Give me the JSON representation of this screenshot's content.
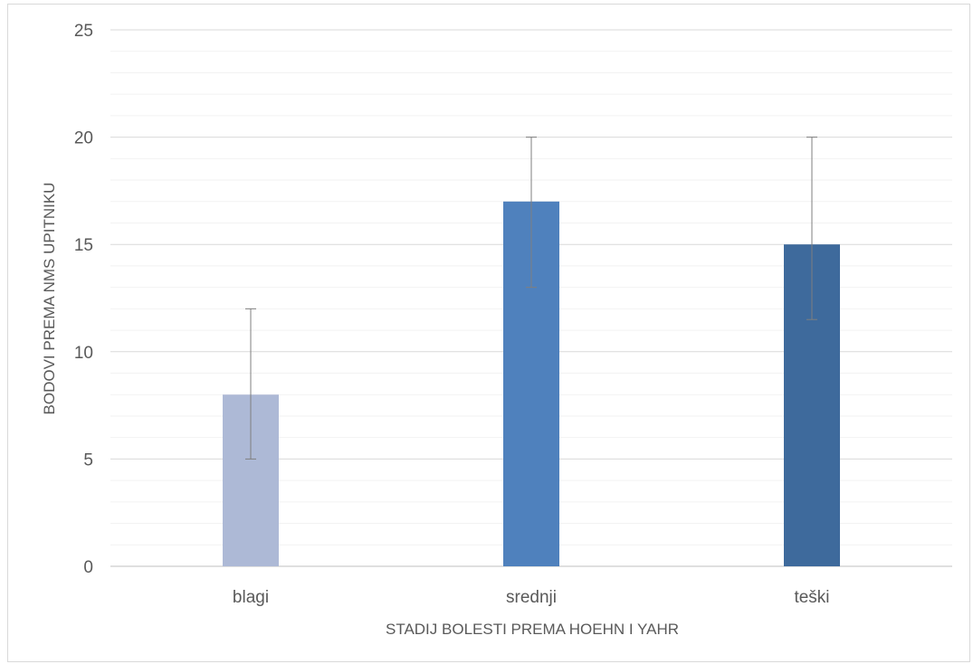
{
  "chart_data": {
    "type": "bar",
    "categories": [
      "blagi",
      "srednji",
      "teški"
    ],
    "values": [
      8,
      17,
      15
    ],
    "error_bars": [
      {
        "low": 5,
        "high": 12
      },
      {
        "low": 13,
        "high": 20
      },
      {
        "low": 11.5,
        "high": 20
      }
    ],
    "colors": [
      "#adb9d6",
      "#4f81bd",
      "#3e6a9c"
    ],
    "xlabel": "STADIJ BOLESTI PREMA HOEHN I YAHR",
    "ylabel": "BODOVI PREMA NMS UPITNIKU",
    "ylim": [
      0,
      25
    ],
    "yticks": [
      0,
      5,
      10,
      15,
      20,
      25
    ],
    "major_grid": true,
    "minor_grid": true,
    "legend": "none"
  }
}
